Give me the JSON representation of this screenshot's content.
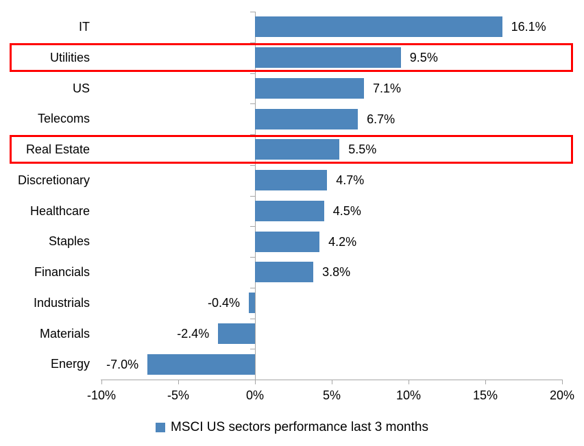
{
  "chart_data": {
    "type": "bar",
    "orientation": "horizontal",
    "title": "",
    "xlabel": "",
    "ylabel": "",
    "categories": [
      "IT",
      "Utilities",
      "US",
      "Telecoms",
      "Real Estate",
      "Discretionary",
      "Healthcare",
      "Staples",
      "Financials",
      "Industrials",
      "Materials",
      "Energy"
    ],
    "values": [
      16.1,
      9.5,
      7.1,
      6.7,
      5.5,
      4.7,
      4.5,
      4.2,
      3.8,
      -0.4,
      -2.4,
      -7.0
    ],
    "value_labels": [
      "16.1%",
      "9.5%",
      "7.1%",
      "6.7%",
      "5.5%",
      "4.7%",
      "4.5%",
      "4.2%",
      "3.8%",
      "-0.4%",
      "-2.4%",
      "-7.0%"
    ],
    "xlim": [
      -10,
      20
    ],
    "x_tick_values": [
      -10,
      -5,
      0,
      5,
      10,
      15,
      20
    ],
    "x_tick_labels": [
      "-10%",
      "-5%",
      "0%",
      "5%",
      "10%",
      "15%",
      "20%"
    ],
    "grid": false,
    "legend_position": "bottom-center",
    "legend_label": "MSCI US sectors performance last 3 months",
    "highlighted_categories": [
      "Utilities",
      "Real Estate"
    ],
    "colors": {
      "bar": "#4E86BC",
      "axis": "#A6A6A6",
      "highlight": "#FF0000",
      "text": "#000000",
      "background": "#FFFFFF"
    }
  }
}
